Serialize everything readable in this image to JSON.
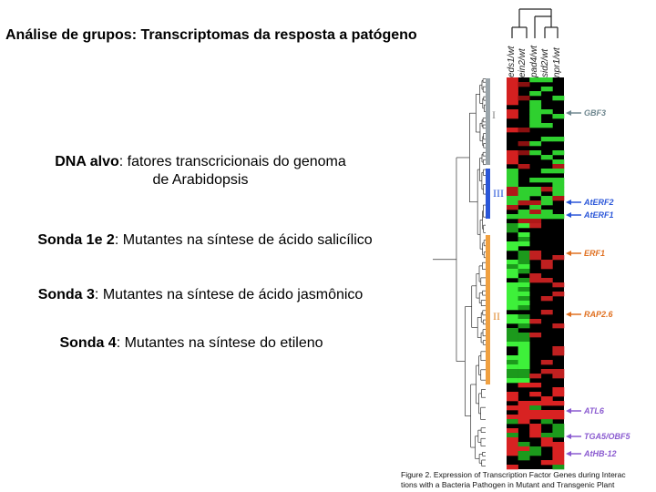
{
  "title": "Análise de grupos: Transcriptomas da resposta a patógeno",
  "bullets": [
    {
      "bold": "DNA alvo",
      "text": ": fatores transcricionais do genoma",
      "text2": "de Arabidopsis"
    },
    {
      "bold": "Sonda 1e 2",
      "text": ": Mutantes na síntese de ácido salicílico"
    },
    {
      "bold": "Sonda 3",
      "text": ": Mutantes na síntese de ácido jasmônico"
    },
    {
      "bold": "Sonda 4",
      "text": ": Mutantes na síntese do etileno"
    }
  ],
  "figure": {
    "columns": [
      "eds1/wt",
      "ein2/wt",
      "pad4/wt",
      "sid2/wt",
      "npr1/wt"
    ],
    "clusters": [
      {
        "label": "I",
        "color": "#9aa4aa"
      },
      {
        "label": "III",
        "color": "#2a56d8"
      },
      {
        "label": "II",
        "color": "#f0a040"
      }
    ],
    "genes": [
      {
        "label": "GBF3",
        "color": "#708890"
      },
      {
        "label": "AtERF2",
        "color": "#2a56d8"
      },
      {
        "label": "AtERF1",
        "color": "#2a56d8"
      },
      {
        "label": "ERF1",
        "color": "#e07020"
      },
      {
        "label": "RAP2.6",
        "color": "#e07020"
      },
      {
        "label": "ATL6",
        "color": "#8a5ad0"
      },
      {
        "label": "TGA5/OBF5",
        "color": "#8a5ad0"
      },
      {
        "label": "AtHB-12",
        "color": "#8a5ad0"
      }
    ],
    "caption_line1": "Figure 2.  Expression of Transcription Factor Genes during Interac",
    "caption_line2": "tions with a Bacteria  Pathogen in Mutant and Transgenic Plant"
  }
}
